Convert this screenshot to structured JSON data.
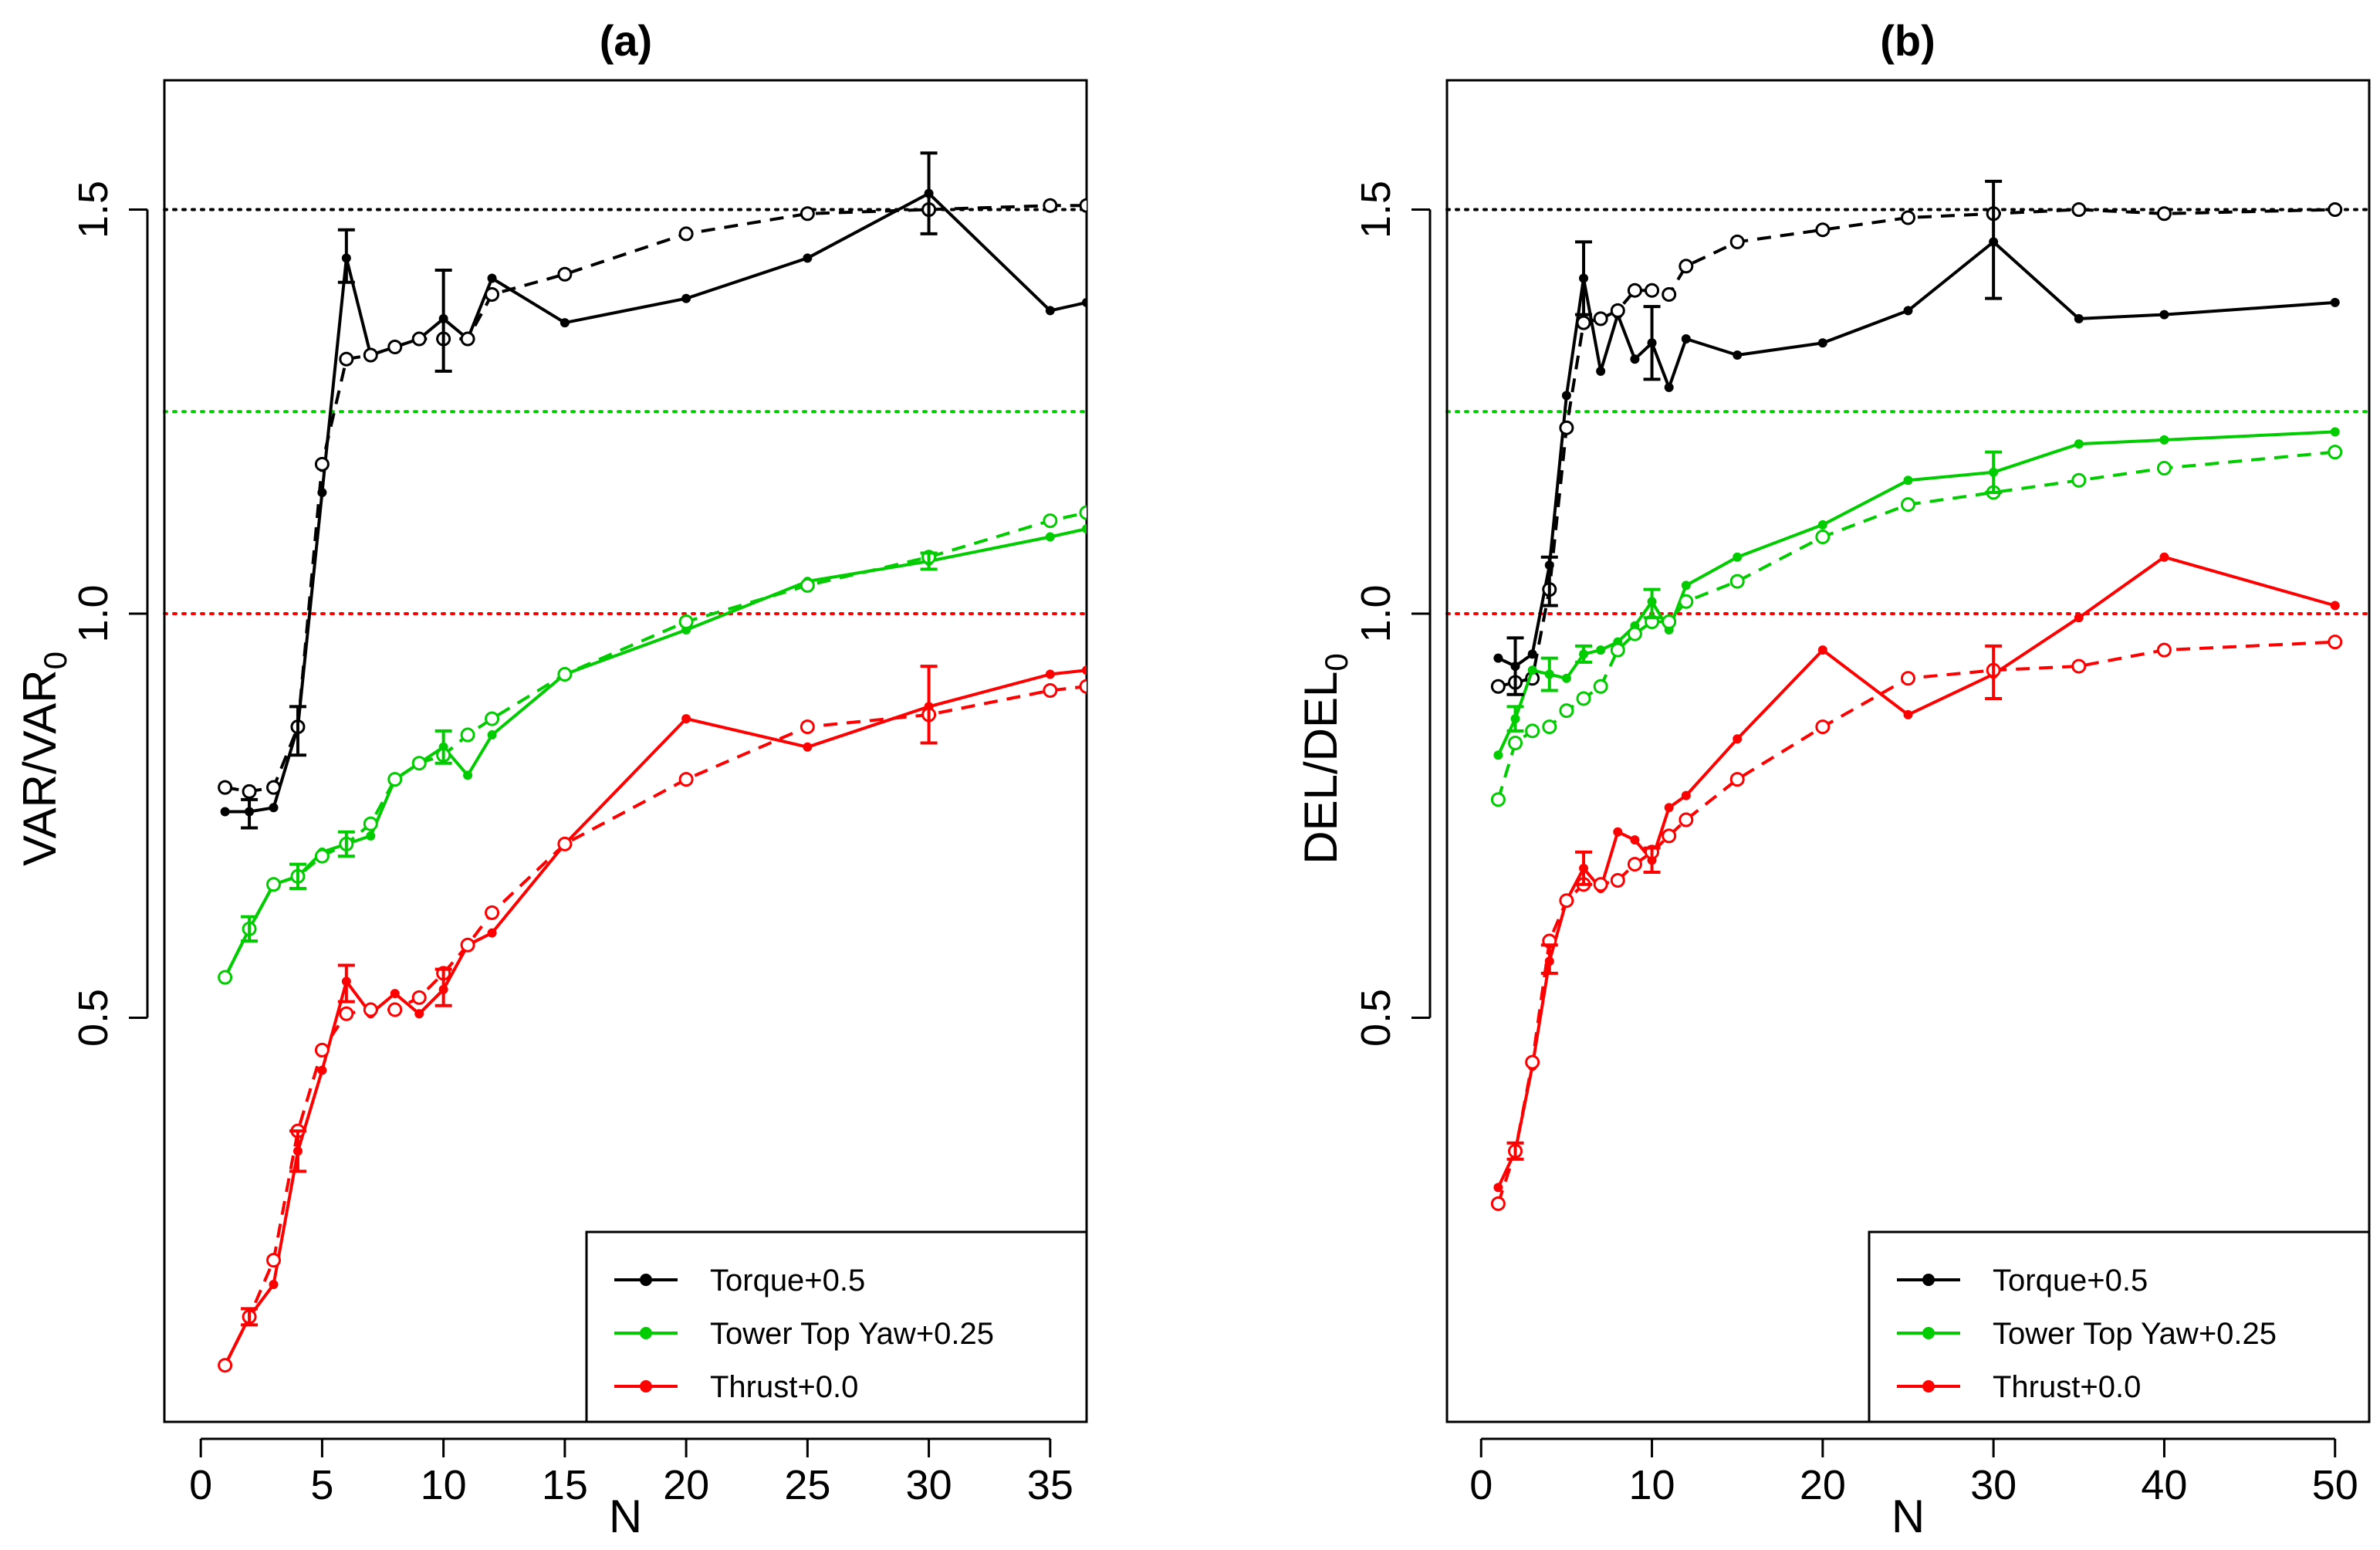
{
  "chart_data": [
    {
      "type": "line",
      "panel": "a",
      "title": "(a)",
      "xlabel": "N",
      "ylabel_main": "VAR",
      "ylabel_sub": "0",
      "xlim": [
        -1.5,
        36.5
      ],
      "ylim": [
        0,
        1.66
      ],
      "xticks": [
        0,
        5,
        10,
        15,
        20,
        25,
        30,
        35
      ],
      "yticks": [
        0.5,
        1.0,
        1.5
      ],
      "ytick_labels": [
        "0.5",
        "1.0",
        "1.5"
      ],
      "reference_lines": [
        {
          "y": 1.5,
          "color": "#000000"
        },
        {
          "y": 1.25,
          "color": "#00cc00"
        },
        {
          "y": 1.0,
          "color": "#ff0000"
        }
      ],
      "series": [
        {
          "name": "Torque+0.5",
          "color": "#000000",
          "style": "solid",
          "x": [
            1,
            2,
            3,
            4,
            5,
            6,
            7,
            8,
            9,
            10,
            11,
            12,
            15,
            20,
            25,
            30,
            35,
            36.5
          ],
          "y": [
            0.755,
            0.755,
            0.76,
            0.86,
            1.15,
            1.44,
            1.32,
            1.33,
            1.34,
            1.365,
            1.34,
            1.415,
            1.36,
            1.39,
            1.44,
            1.52,
            1.375,
            1.385
          ]
        },
        {
          "name": "Torque+0.5 (dashed)",
          "color": "#000000",
          "style": "dashed",
          "x": [
            1,
            2,
            3,
            4,
            5,
            6,
            7,
            8,
            9,
            10,
            11,
            12,
            15,
            20,
            25,
            30,
            35,
            36.5
          ],
          "y": [
            0.785,
            0.78,
            0.785,
            0.86,
            1.185,
            1.315,
            1.32,
            1.33,
            1.34,
            1.34,
            1.34,
            1.395,
            1.42,
            1.47,
            1.495,
            1.5,
            1.505,
            1.505
          ]
        },
        {
          "name": "Tower Top Yaw+0.25",
          "color": "#00cc00",
          "style": "solid",
          "x": [
            1,
            2,
            3,
            4,
            5,
            6,
            7,
            8,
            9,
            10,
            11,
            12,
            15,
            20,
            25,
            30,
            35,
            36.5
          ],
          "y": [
            0.55,
            0.61,
            0.665,
            0.675,
            0.705,
            0.715,
            0.725,
            0.795,
            0.815,
            0.835,
            0.8,
            0.85,
            0.925,
            0.98,
            1.04,
            1.065,
            1.095,
            1.105
          ]
        },
        {
          "name": "Tower Top Yaw+0.25 (dashed)",
          "color": "#00cc00",
          "style": "dashed",
          "x": [
            1,
            2,
            3,
            4,
            5,
            6,
            7,
            8,
            9,
            10,
            11,
            12,
            15,
            20,
            25,
            30,
            35,
            36.5
          ],
          "y": [
            0.55,
            0.61,
            0.665,
            0.675,
            0.7,
            0.715,
            0.74,
            0.795,
            0.815,
            0.825,
            0.85,
            0.87,
            0.925,
            0.99,
            1.035,
            1.07,
            1.115,
            1.125
          ]
        },
        {
          "name": "Thrust+0.0",
          "color": "#ff0000",
          "style": "solid",
          "x": [
            1,
            2,
            3,
            4,
            5,
            6,
            7,
            8,
            9,
            10,
            11,
            12,
            15,
            20,
            25,
            30,
            35,
            36.5
          ],
          "y": [
            0.07,
            0.13,
            0.17,
            0.335,
            0.435,
            0.545,
            0.505,
            0.53,
            0.505,
            0.535,
            0.59,
            0.605,
            0.715,
            0.87,
            0.835,
            0.885,
            0.925,
            0.93
          ]
        },
        {
          "name": "Thrust+0.0 (dashed)",
          "color": "#ff0000",
          "style": "dashed",
          "x": [
            1,
            2,
            3,
            4,
            5,
            6,
            7,
            8,
            9,
            10,
            11,
            12,
            15,
            20,
            25,
            30,
            35,
            36.5
          ],
          "y": [
            0.07,
            0.13,
            0.2,
            0.36,
            0.46,
            0.505,
            0.51,
            0.51,
            0.525,
            0.555,
            0.59,
            0.63,
            0.715,
            0.795,
            0.86,
            0.875,
            0.905,
            0.91
          ]
        }
      ],
      "error_bars": [
        {
          "color": "#000000",
          "x": 2,
          "lo": 0.735,
          "hi": 0.77
        },
        {
          "color": "#000000",
          "x": 4,
          "lo": 0.825,
          "hi": 0.885
        },
        {
          "color": "#000000",
          "x": 6,
          "lo": 1.41,
          "hi": 1.475
        },
        {
          "color": "#000000",
          "x": 10,
          "lo": 1.3,
          "hi": 1.425
        },
        {
          "color": "#000000",
          "x": 30,
          "lo": 1.47,
          "hi": 1.57
        },
        {
          "color": "#00cc00",
          "x": 2,
          "lo": 0.595,
          "hi": 0.625
        },
        {
          "color": "#00cc00",
          "x": 4,
          "lo": 0.66,
          "hi": 0.69
        },
        {
          "color": "#00cc00",
          "x": 6,
          "lo": 0.7,
          "hi": 0.73
        },
        {
          "color": "#00cc00",
          "x": 10,
          "lo": 0.815,
          "hi": 0.855
        },
        {
          "color": "#00cc00",
          "x": 30,
          "lo": 1.055,
          "hi": 1.075
        },
        {
          "color": "#ff0000",
          "x": 2,
          "lo": 0.12,
          "hi": 0.14
        },
        {
          "color": "#ff0000",
          "x": 4,
          "lo": 0.31,
          "hi": 0.36
        },
        {
          "color": "#ff0000",
          "x": 6,
          "lo": 0.52,
          "hi": 0.565
        },
        {
          "color": "#ff0000",
          "x": 10,
          "lo": 0.515,
          "hi": 0.56
        },
        {
          "color": "#ff0000",
          "x": 30,
          "lo": 0.84,
          "hi": 0.935
        }
      ],
      "legend": {
        "position": "bottom-right",
        "entries": [
          {
            "label": "Torque+0.5",
            "color": "#000000"
          },
          {
            "label": "Tower Top Yaw+0.25",
            "color": "#00cc00"
          },
          {
            "label": "Thrust+0.0",
            "color": "#ff0000"
          }
        ]
      }
    },
    {
      "type": "line",
      "panel": "b",
      "title": "(b)",
      "xlabel": "N",
      "ylabel_main": "DEL",
      "ylabel_sub": "0",
      "xlim": [
        -2,
        52
      ],
      "ylim": [
        0,
        1.66
      ],
      "xticks": [
        0,
        10,
        20,
        30,
        40,
        50
      ],
      "yticks": [
        0.5,
        1.0,
        1.5
      ],
      "ytick_labels": [
        "0.5",
        "1.0",
        "1.5"
      ],
      "reference_lines": [
        {
          "y": 1.5,
          "color": "#000000"
        },
        {
          "y": 1.25,
          "color": "#00cc00"
        },
        {
          "y": 1.0,
          "color": "#ff0000"
        }
      ],
      "series": [
        {
          "name": "Torque+0.5",
          "color": "#000000",
          "style": "solid",
          "x": [
            1,
            2,
            3,
            4,
            5,
            6,
            7,
            8,
            9,
            10,
            11,
            12,
            15,
            20,
            25,
            30,
            35,
            40,
            50
          ],
          "y": [
            0.945,
            0.935,
            0.95,
            1.06,
            1.27,
            1.415,
            1.3,
            1.37,
            1.315,
            1.335,
            1.28,
            1.34,
            1.32,
            1.335,
            1.375,
            1.46,
            1.365,
            1.37,
            1.385
          ]
        },
        {
          "name": "Torque+0.5 (dashed)",
          "color": "#000000",
          "style": "dashed",
          "x": [
            1,
            2,
            3,
            4,
            5,
            6,
            7,
            8,
            9,
            10,
            11,
            12,
            15,
            20,
            25,
            30,
            35,
            40,
            50
          ],
          "y": [
            0.91,
            0.915,
            0.92,
            1.03,
            1.23,
            1.36,
            1.365,
            1.375,
            1.4,
            1.4,
            1.395,
            1.43,
            1.46,
            1.475,
            1.49,
            1.495,
            1.5,
            1.495,
            1.5
          ]
        },
        {
          "name": "Tower Top Yaw+0.25",
          "color": "#00cc00",
          "style": "solid",
          "x": [
            1,
            2,
            3,
            4,
            5,
            6,
            7,
            8,
            9,
            10,
            11,
            12,
            15,
            20,
            25,
            30,
            35,
            40,
            50
          ],
          "y": [
            0.825,
            0.87,
            0.93,
            0.925,
            0.92,
            0.95,
            0.955,
            0.965,
            0.985,
            1.015,
            0.98,
            1.035,
            1.07,
            1.11,
            1.165,
            1.175,
            1.21,
            1.215,
            1.225
          ]
        },
        {
          "name": "Tower Top Yaw+0.25 (dashed)",
          "color": "#00cc00",
          "style": "dashed",
          "x": [
            1,
            2,
            3,
            4,
            5,
            6,
            7,
            8,
            9,
            10,
            11,
            12,
            15,
            20,
            25,
            30,
            35,
            40,
            50
          ],
          "y": [
            0.77,
            0.84,
            0.855,
            0.86,
            0.88,
            0.895,
            0.91,
            0.955,
            0.975,
            0.99,
            0.99,
            1.015,
            1.04,
            1.095,
            1.135,
            1.15,
            1.165,
            1.18,
            1.2
          ]
        },
        {
          "name": "Thrust+0.0",
          "color": "#ff0000",
          "style": "solid",
          "x": [
            1,
            2,
            3,
            4,
            5,
            6,
            7,
            8,
            9,
            10,
            11,
            12,
            15,
            20,
            25,
            30,
            35,
            40,
            50
          ],
          "y": [
            0.29,
            0.335,
            0.44,
            0.57,
            0.645,
            0.685,
            0.66,
            0.73,
            0.72,
            0.695,
            0.76,
            0.775,
            0.845,
            0.955,
            0.875,
            0.925,
            0.995,
            1.07,
            1.01
          ]
        },
        {
          "name": "Thrust+0.0 (dashed)",
          "color": "#ff0000",
          "style": "dashed",
          "x": [
            1,
            2,
            3,
            4,
            5,
            6,
            7,
            8,
            9,
            10,
            11,
            12,
            15,
            20,
            25,
            30,
            35,
            40,
            50
          ],
          "y": [
            0.27,
            0.335,
            0.445,
            0.595,
            0.645,
            0.665,
            0.665,
            0.67,
            0.69,
            0.705,
            0.725,
            0.745,
            0.795,
            0.86,
            0.92,
            0.93,
            0.935,
            0.955,
            0.965
          ]
        }
      ],
      "error_bars": [
        {
          "color": "#000000",
          "x": 2,
          "lo": 0.9,
          "hi": 0.97
        },
        {
          "color": "#000000",
          "x": 4,
          "lo": 1.01,
          "hi": 1.07
        },
        {
          "color": "#000000",
          "x": 6,
          "lo": 1.37,
          "hi": 1.46
        },
        {
          "color": "#000000",
          "x": 10,
          "lo": 1.29,
          "hi": 1.38
        },
        {
          "color": "#000000",
          "x": 30,
          "lo": 1.39,
          "hi": 1.535
        },
        {
          "color": "#00cc00",
          "x": 2,
          "lo": 0.855,
          "hi": 0.885
        },
        {
          "color": "#00cc00",
          "x": 4,
          "lo": 0.905,
          "hi": 0.945
        },
        {
          "color": "#00cc00",
          "x": 6,
          "lo": 0.94,
          "hi": 0.96
        },
        {
          "color": "#00cc00",
          "x": 10,
          "lo": 0.995,
          "hi": 1.03
        },
        {
          "color": "#00cc00",
          "x": 30,
          "lo": 1.15,
          "hi": 1.2
        },
        {
          "color": "#ff0000",
          "x": 2,
          "lo": 0.325,
          "hi": 0.345
        },
        {
          "color": "#ff0000",
          "x": 4,
          "lo": 0.555,
          "hi": 0.59
        },
        {
          "color": "#ff0000",
          "x": 6,
          "lo": 0.665,
          "hi": 0.705
        },
        {
          "color": "#ff0000",
          "x": 10,
          "lo": 0.68,
          "hi": 0.71
        },
        {
          "color": "#ff0000",
          "x": 30,
          "lo": 0.895,
          "hi": 0.96
        }
      ],
      "legend": {
        "position": "bottom-right",
        "entries": [
          {
            "label": "Torque+0.5",
            "color": "#000000"
          },
          {
            "label": "Tower Top Yaw+0.25",
            "color": "#00cc00"
          },
          {
            "label": "Thrust+0.0",
            "color": "#ff0000"
          }
        ]
      }
    }
  ]
}
